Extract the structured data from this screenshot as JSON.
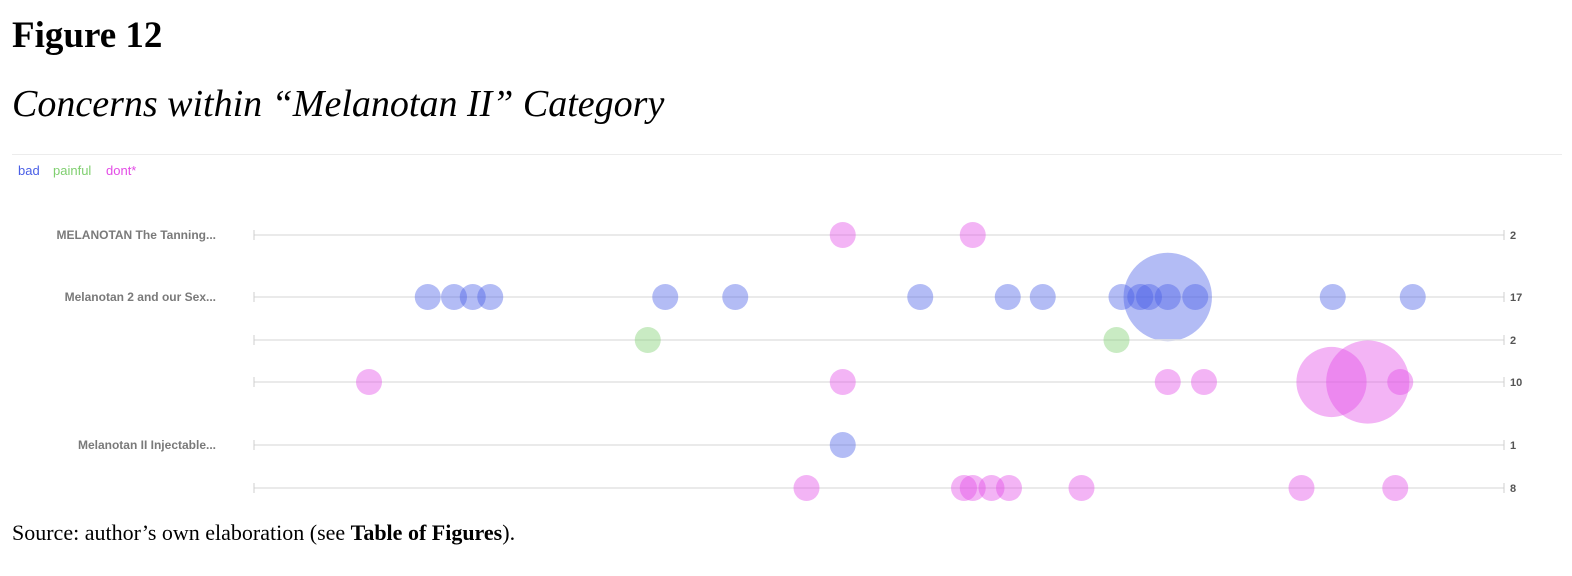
{
  "figure": {
    "label": "Figure 12",
    "subtitle": "Concerns within “Melanotan II” Category"
  },
  "source": {
    "prefix": "Source: author’s own elaboration (see ",
    "link": "Table of Figures",
    "suffix": ")."
  },
  "chart_data": {
    "type": "scatter",
    "legend": [
      {
        "name": "bad",
        "color": "#4a5fe6"
      },
      {
        "name": "painful",
        "color": "#7fcf6f"
      },
      {
        "name": "dont*",
        "color": "#e34ce6"
      }
    ],
    "legend_placement": "top-left",
    "grid": true,
    "rows": [
      {
        "label": "MELANOTAN The Tanning...",
        "count": "2",
        "color": "#e34ce6",
        "points": [
          {
            "x": 0.471,
            "s": 1
          },
          {
            "x": 0.575,
            "s": 1
          }
        ]
      },
      {
        "label": "Melanotan 2 and our Sex...",
        "count": "17",
        "color": "#4a5fe6",
        "points": [
          {
            "x": 0.139,
            "s": 1
          },
          {
            "x": 0.16,
            "s": 1
          },
          {
            "x": 0.175,
            "s": 1
          },
          {
            "x": 0.189,
            "s": 1
          },
          {
            "x": 0.329,
            "s": 1
          },
          {
            "x": 0.385,
            "s": 1
          },
          {
            "x": 0.533,
            "s": 1
          },
          {
            "x": 0.603,
            "s": 1
          },
          {
            "x": 0.631,
            "s": 1
          },
          {
            "x": 0.694,
            "s": 1
          },
          {
            "x": 0.709,
            "s": 1
          },
          {
            "x": 0.716,
            "s": 1
          },
          {
            "x": 0.731,
            "s": 1
          },
          {
            "x": 0.731,
            "s": 3.4
          },
          {
            "x": 0.753,
            "s": 1
          },
          {
            "x": 0.863,
            "s": 1
          },
          {
            "x": 0.927,
            "s": 1
          }
        ]
      },
      {
        "label": "",
        "count": "2",
        "color": "#7fcf6f",
        "points": [
          {
            "x": 0.315,
            "s": 1
          },
          {
            "x": 0.69,
            "s": 1
          }
        ]
      },
      {
        "label": "",
        "count": "10",
        "color": "#e34ce6",
        "points": [
          {
            "x": 0.092,
            "s": 1
          },
          {
            "x": 0.471,
            "s": 1
          },
          {
            "x": 0.731,
            "s": 1
          },
          {
            "x": 0.76,
            "s": 1
          },
          {
            "x": 0.862,
            "s": 2.7
          },
          {
            "x": 0.891,
            "s": 3.2
          },
          {
            "x": 0.917,
            "s": 1
          }
        ]
      },
      {
        "label": "Melanotan II Injectable...",
        "count": "1",
        "color": "#4a5fe6",
        "points": [
          {
            "x": 0.471,
            "s": 1
          }
        ]
      },
      {
        "label": "",
        "count": "8",
        "color": "#e34ce6",
        "points": [
          {
            "x": 0.442,
            "s": 1
          },
          {
            "x": 0.568,
            "s": 1
          },
          {
            "x": 0.575,
            "s": 1
          },
          {
            "x": 0.59,
            "s": 1
          },
          {
            "x": 0.604,
            "s": 1
          },
          {
            "x": 0.662,
            "s": 1
          },
          {
            "x": 0.838,
            "s": 1
          },
          {
            "x": 0.913,
            "s": 1
          }
        ]
      }
    ]
  }
}
